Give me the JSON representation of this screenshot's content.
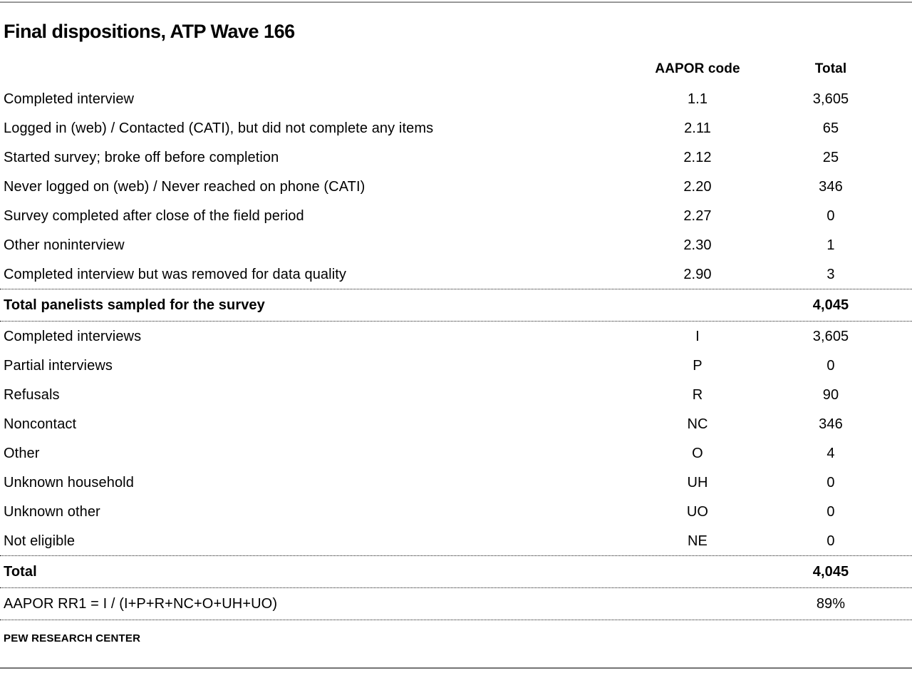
{
  "title": "Final dispositions, ATP Wave 166",
  "footer": "PEW RESEARCH CENTER",
  "colors": {
    "text": "#000000",
    "rule_top": "#8c8c8c",
    "rule_bottom": "#6b6b6b",
    "dotted_separator": "#1a1a1a"
  },
  "table": {
    "columns": {
      "label": "",
      "code": "AAPOR code",
      "total": "Total"
    },
    "section1": [
      {
        "label": "Completed interview",
        "code": "1.1",
        "total": "3,605"
      },
      {
        "label": "Logged in (web) / Contacted (CATI), but did not complete any items",
        "code": "2.11",
        "total": "65"
      },
      {
        "label": "Started survey; broke off before completion",
        "code": "2.12",
        "total": "25"
      },
      {
        "label": "Never logged on (web) / Never reached on phone (CATI)",
        "code": "2.20",
        "total": "346"
      },
      {
        "label": "Survey completed after close of the field period",
        "code": "2.27",
        "total": "0"
      },
      {
        "label": "Other noninterview",
        "code": "2.30",
        "total": "1"
      },
      {
        "label": "Completed interview but was removed for data quality",
        "code": "2.90",
        "total": "3"
      }
    ],
    "total_sampled": {
      "label": "Total panelists sampled for the survey",
      "code": "",
      "total": "4,045"
    },
    "section2": [
      {
        "label": "Completed interviews",
        "code": "I",
        "total": "3,605"
      },
      {
        "label": "Partial interviews",
        "code": "P",
        "total": "0"
      },
      {
        "label": "Refusals",
        "code": "R",
        "total": "90"
      },
      {
        "label": "Noncontact",
        "code": "NC",
        "total": "346"
      },
      {
        "label": "Other",
        "code": "O",
        "total": "4"
      },
      {
        "label": "Unknown household",
        "code": "UH",
        "total": "0"
      },
      {
        "label": "Unknown other",
        "code": "UO",
        "total": "0"
      },
      {
        "label": "Not eligible",
        "code": "NE",
        "total": "0"
      }
    ],
    "grand_total": {
      "label": "Total",
      "code": "",
      "total": "4,045"
    },
    "rr1": {
      "label": "AAPOR RR1 = I / (I+P+R+NC+O+UH+UO)",
      "code": "",
      "total": "89%"
    }
  }
}
